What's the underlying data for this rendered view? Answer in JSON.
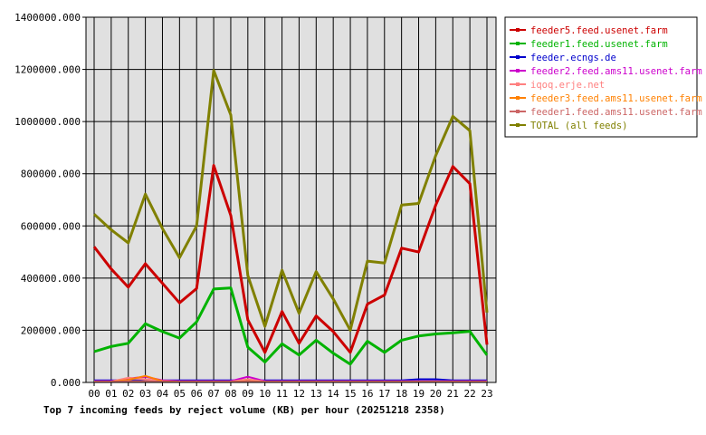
{
  "chart_data": {
    "type": "line",
    "title": "Top 7 incoming feeds by reject volume (KB) per hour (20251218 2358)",
    "xlabel": "",
    "ylabel": "",
    "ylim": [
      0,
      1400000
    ],
    "y_ticks": [
      "0.000",
      "200000.000",
      "400000.000",
      "600000.000",
      "800000.000",
      "1000000.000",
      "1200000.000",
      "1400000.000"
    ],
    "categories": [
      "00",
      "01",
      "02",
      "03",
      "04",
      "05",
      "06",
      "07",
      "08",
      "09",
      "10",
      "11",
      "12",
      "13",
      "14",
      "15",
      "16",
      "17",
      "18",
      "19",
      "20",
      "21",
      "22",
      "23"
    ],
    "grid": true,
    "legend_position": "right",
    "background": "#e0e0e0",
    "series": [
      {
        "name": "feeder5.feed.usenet.farm",
        "color": "#cc0000",
        "width": 3,
        "values": [
          520000,
          435000,
          365000,
          455000,
          380000,
          305000,
          360000,
          832000,
          640000,
          240000,
          115000,
          272000,
          150000,
          255000,
          195000,
          115000,
          300000,
          335000,
          515000,
          500000,
          680000,
          828000,
          762000,
          145000
        ]
      },
      {
        "name": "feeder1.feed.usenet.farm",
        "color": "#00b300",
        "width": 3,
        "values": [
          118000,
          138000,
          150000,
          225000,
          195000,
          170000,
          232000,
          358000,
          362000,
          135000,
          78000,
          148000,
          105000,
          162000,
          112000,
          70000,
          158000,
          115000,
          162000,
          178000,
          186000,
          190000,
          196000,
          105000
        ]
      },
      {
        "name": "feeder.ecngs.de",
        "color": "#0000cc",
        "width": 2,
        "values": [
          8000,
          8000,
          8000,
          8000,
          8000,
          8000,
          8000,
          8000,
          8000,
          8000,
          8000,
          8000,
          8000,
          8000,
          8000,
          8000,
          8000,
          8000,
          8000,
          12000,
          12000,
          8000,
          8000,
          8000
        ]
      },
      {
        "name": "feeder2.feed.ams11.usenet.farm",
        "color": "#cc00cc",
        "width": 2,
        "values": [
          5000,
          5000,
          15000,
          22000,
          8000,
          5000,
          5000,
          5000,
          5000,
          22000,
          5000,
          5000,
          5000,
          5000,
          5000,
          5000,
          5000,
          5000,
          5000,
          5000,
          5000,
          5000,
          5000,
          5000
        ]
      },
      {
        "name": "iqoq.erje.net",
        "color": "#ff8080",
        "width": 2,
        "values": [
          3000,
          3000,
          18000,
          12000,
          5000,
          3000,
          3000,
          3000,
          3000,
          12000,
          3000,
          3000,
          3000,
          3000,
          3000,
          3000,
          3000,
          3000,
          3000,
          3000,
          3000,
          3000,
          3000,
          3000
        ]
      },
      {
        "name": "feeder3.feed.ams11.usenet.farm",
        "color": "#ff8000",
        "width": 2,
        "values": [
          2000,
          2000,
          10000,
          25000,
          5000,
          2000,
          2000,
          2000,
          2000,
          5000,
          2000,
          2000,
          2000,
          2000,
          2000,
          2000,
          2000,
          2000,
          2000,
          2000,
          2000,
          2000,
          2000,
          2000
        ]
      },
      {
        "name": "feeder1.feed.ams11.usenet.farm",
        "color": "#cc6666",
        "width": 2,
        "values": [
          2000,
          2000,
          5000,
          5000,
          3000,
          2000,
          2000,
          2000,
          2000,
          3000,
          2000,
          2000,
          2000,
          2000,
          2000,
          2000,
          2000,
          2000,
          2000,
          2000,
          2000,
          2000,
          2000,
          2000
        ]
      },
      {
        "name": "TOTAL (all feeds)",
        "color": "#808000",
        "width": 3,
        "values": [
          645000,
          585000,
          535000,
          722000,
          590000,
          478000,
          600000,
          1196000,
          1025000,
          410000,
          215000,
          430000,
          265000,
          425000,
          320000,
          200000,
          465000,
          458000,
          680000,
          686000,
          870000,
          1020000,
          965000,
          268000
        ]
      }
    ]
  }
}
